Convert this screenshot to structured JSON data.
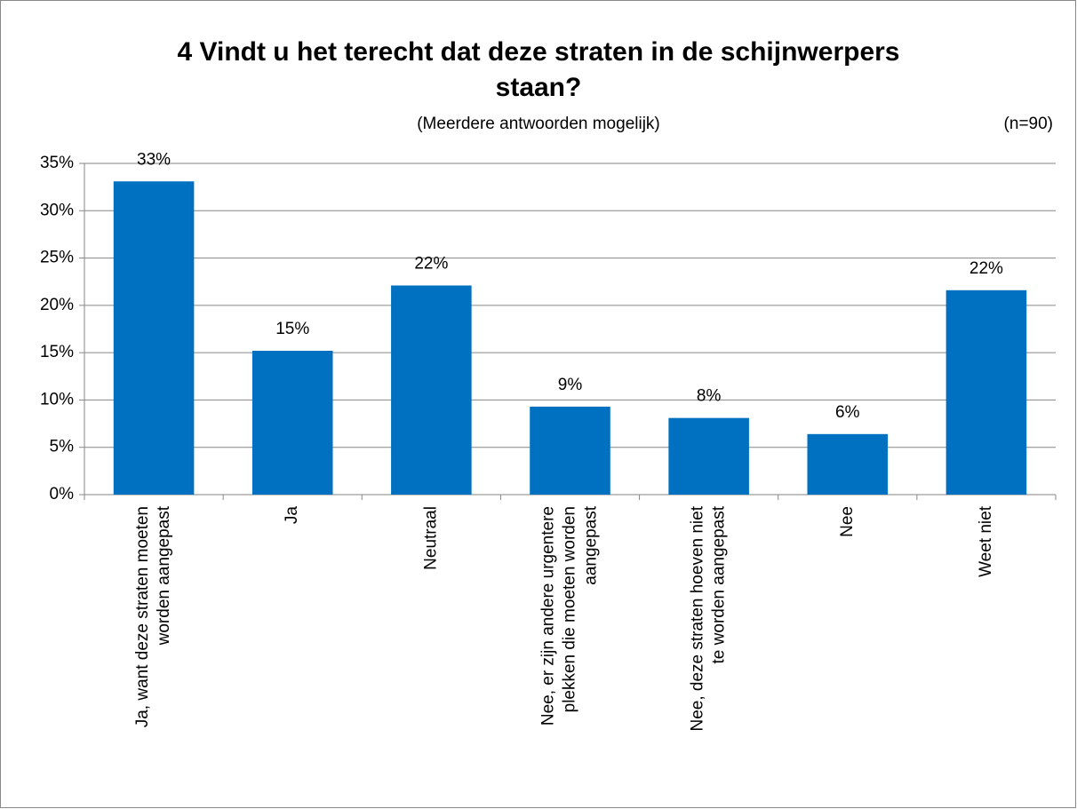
{
  "chart_data": {
    "type": "bar",
    "title": "4 Vindt u het terecht dat deze straten in de schijnwerpers staan?",
    "subtitle": "(Meerdere antwoorden mogelijk)",
    "annotation": "(n=90)",
    "categories": [
      "Ja, want deze straten moeten worden aangepast",
      "Ja",
      "Neutraal",
      "Nee, er zijn andere urgentere plekken die moeten worden aangepast",
      "Nee, deze straten hoeven niet te worden aangepast",
      "Nee",
      "Weet niet"
    ],
    "values": [
      33.1,
      15.2,
      22.1,
      9.3,
      8.1,
      6.4,
      21.6
    ],
    "value_labels": [
      "33%",
      "15%",
      "22%",
      "9%",
      "8%",
      "6%",
      "22%"
    ],
    "color": "#0070c0",
    "ylim": [
      0,
      35
    ],
    "yticks": [
      {
        "value": 0,
        "label": "0%"
      },
      {
        "value": 5,
        "label": "5%"
      },
      {
        "value": 10,
        "label": "10%"
      },
      {
        "value": 15,
        "label": "15%"
      },
      {
        "value": 20,
        "label": "20%"
      },
      {
        "value": 25,
        "label": "25%"
      },
      {
        "value": 30,
        "label": "30%"
      },
      {
        "value": 35,
        "label": "35%"
      }
    ],
    "grid": true
  }
}
